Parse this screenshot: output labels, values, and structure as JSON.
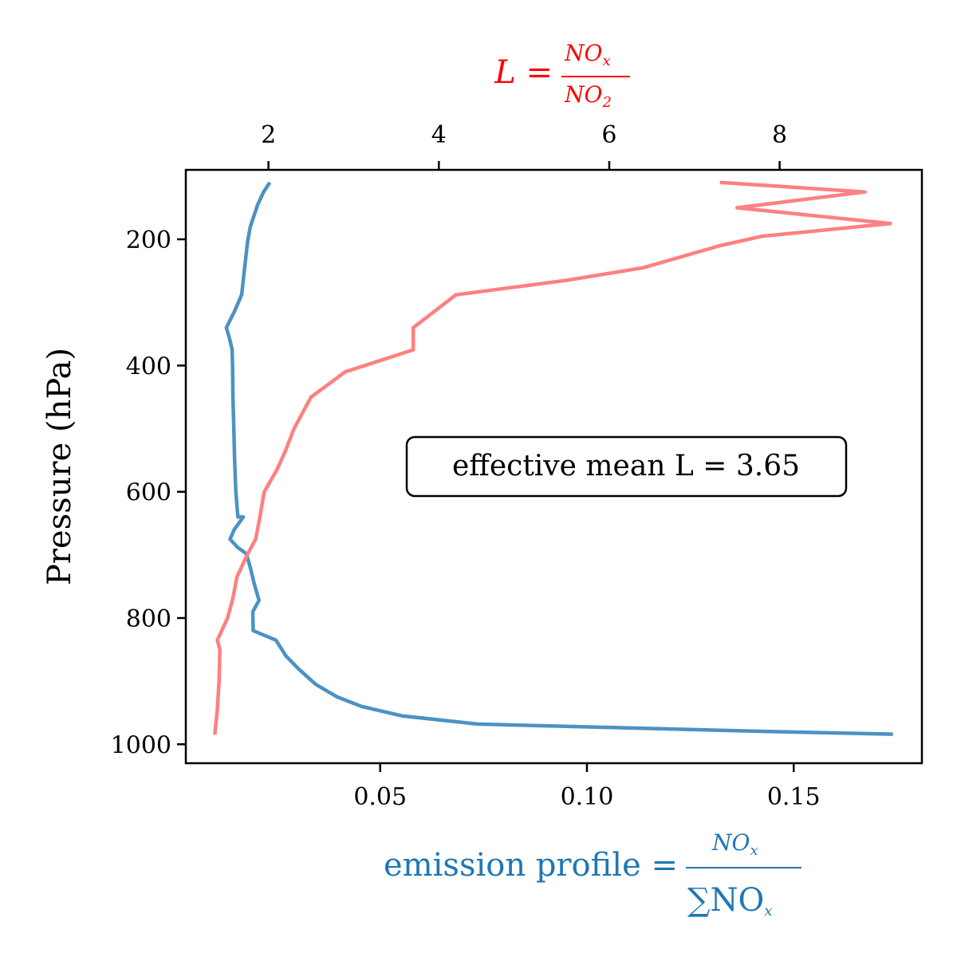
{
  "chart_data": {
    "type": "line",
    "y_axis": {
      "label": "Pressure (hPa)",
      "range": [
        1030,
        90
      ],
      "inverted": true,
      "ticks": [
        200,
        400,
        600,
        800,
        1000
      ]
    },
    "x_axis_bottom": {
      "label_text": "emission profile =",
      "label_fraction_numerator": "NO",
      "label_fraction_numerator_sub": "x",
      "label_fraction_denominator": "∑NO",
      "label_fraction_denominator_sub": "x",
      "color": "#1f77b4",
      "range": [
        0.003,
        0.181
      ],
      "ticks": [
        "0.05",
        "0.10",
        "0.15"
      ]
    },
    "x_axis_top": {
      "label_lhs": "L =",
      "label_fraction_numerator": "NO",
      "label_fraction_numerator_sub": "x",
      "label_fraction_denominator": "NO",
      "label_fraction_denominator_sub": "2",
      "color": "#ff0000",
      "range": [
        1.03,
        9.67
      ],
      "ticks": [
        "2",
        "4",
        "6",
        "8"
      ]
    },
    "annotation": "effective mean L = 3.65",
    "grid": false,
    "series": [
      {
        "axis": "bottom",
        "color": "#1f77b4",
        "points": [
          [
            0.0233,
            110
          ],
          [
            0.0218,
            125
          ],
          [
            0.0204,
            145
          ],
          [
            0.0195,
            162
          ],
          [
            0.0186,
            180
          ],
          [
            0.0179,
            205
          ],
          [
            0.0173,
            240
          ],
          [
            0.0165,
            288
          ],
          [
            0.0147,
            315
          ],
          [
            0.0128,
            340
          ],
          [
            0.0135,
            355
          ],
          [
            0.0142,
            375
          ],
          [
            0.0143,
            400
          ],
          [
            0.0144,
            450
          ],
          [
            0.0146,
            500
          ],
          [
            0.0148,
            550
          ],
          [
            0.0151,
            600
          ],
          [
            0.0156,
            640
          ],
          [
            0.0169,
            640
          ],
          [
            0.0147,
            660
          ],
          [
            0.0137,
            675
          ],
          [
            0.0155,
            688
          ],
          [
            0.0176,
            698
          ],
          [
            0.0186,
            720
          ],
          [
            0.0195,
            745
          ],
          [
            0.0207,
            772
          ],
          [
            0.0192,
            790
          ],
          [
            0.0193,
            820
          ],
          [
            0.0248,
            835
          ],
          [
            0.0272,
            860
          ],
          [
            0.0302,
            880
          ],
          [
            0.0344,
            905
          ],
          [
            0.0396,
            925
          ],
          [
            0.0455,
            940
          ],
          [
            0.0552,
            955
          ],
          [
            0.0735,
            968
          ],
          [
            0.11,
            974
          ],
          [
            0.145,
            980
          ],
          [
            0.174,
            984
          ]
        ]
      },
      {
        "axis": "top",
        "color": "#ff8080",
        "points": [
          [
            7.3,
            110
          ],
          [
            9.0,
            125
          ],
          [
            7.5,
            150
          ],
          [
            9.3,
            175
          ],
          [
            7.8,
            195
          ],
          [
            7.3,
            210
          ],
          [
            6.4,
            245
          ],
          [
            5.5,
            265
          ],
          [
            4.2,
            288
          ],
          [
            3.7,
            340
          ],
          [
            3.7,
            375
          ],
          [
            2.9,
            410
          ],
          [
            2.5,
            450
          ],
          [
            2.3,
            500
          ],
          [
            2.2,
            535
          ],
          [
            2.1,
            565
          ],
          [
            1.95,
            600
          ],
          [
            1.9,
            640
          ],
          [
            1.85,
            675
          ],
          [
            1.75,
            700
          ],
          [
            1.63,
            735
          ],
          [
            1.58,
            770
          ],
          [
            1.52,
            800
          ],
          [
            1.4,
            835
          ],
          [
            1.43,
            850
          ],
          [
            1.42,
            900
          ],
          [
            1.4,
            945
          ],
          [
            1.37,
            985
          ]
        ]
      }
    ]
  }
}
